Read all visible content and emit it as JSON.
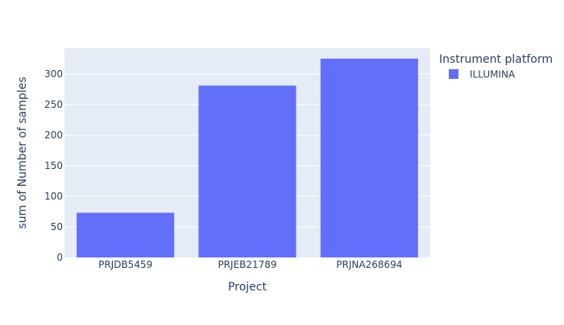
{
  "chart_data": {
    "type": "bar",
    "categories": [
      "PRJDB5459",
      "PRJEB21789",
      "PRJNA268694"
    ],
    "series": [
      {
        "name": "ILLUMINA",
        "values": [
          73,
          281,
          325
        ],
        "color": "#636efa"
      }
    ],
    "xlabel": "Project",
    "ylabel": "sum of Number of samples",
    "ylim": [
      0,
      342
    ],
    "yticks": [
      0,
      50,
      100,
      150,
      200,
      250,
      300
    ],
    "grid": true,
    "legend": {
      "title": "Instrument platform",
      "placement": "top-right"
    },
    "colors": {
      "plot_background": "#e5ecf6",
      "gridline": "#ffffff",
      "text": "#2a3f5f"
    }
  }
}
